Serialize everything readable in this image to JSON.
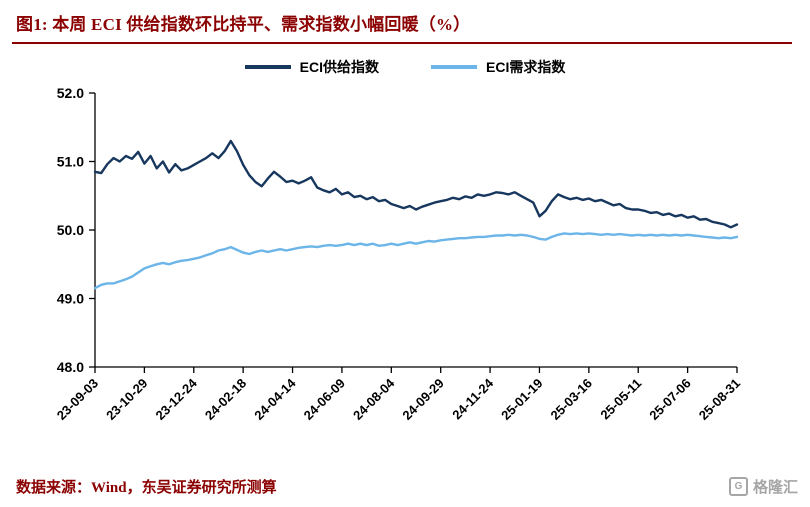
{
  "page": {
    "background": "#ffffff",
    "accent_color": "#8B0000"
  },
  "header": {
    "title": "图1:  本周 ECI 供给指数环比持平、需求指数小幅回暖（%）"
  },
  "footer": {
    "source": "数据来源：Wind，东吴证券研究所测算",
    "logo_text": "格隆汇",
    "logo_letter": "G"
  },
  "chart_data": {
    "type": "line",
    "title": "本周 ECI 供给指数环比持平、需求指数小幅回暖（%）",
    "ylabel": "",
    "xlabel": "",
    "ylim": [
      48.0,
      52.0
    ],
    "y_tick_labels": [
      "48.0",
      "49.0",
      "50.0",
      "51.0",
      "52.0"
    ],
    "x_tick_step": 8,
    "x_tick_labels": [
      "23-09-03",
      "23-10-29",
      "23-12-24",
      "24-02-18",
      "24-04-14",
      "24-06-09",
      "24-08-04",
      "24-09-29",
      "24-11-24",
      "25-01-19",
      "25-03-16",
      "25-05-11",
      "25-07-06",
      "25-08-31"
    ],
    "grid": false,
    "legend_position": "top-center",
    "axis_color": "#000000",
    "series": [
      {
        "name": "ECI供给指数",
        "color": "#17375E",
        "values": [
          50.85,
          50.83,
          50.96,
          51.05,
          51.0,
          51.08,
          51.04,
          51.14,
          50.97,
          51.08,
          50.9,
          51.0,
          50.84,
          50.96,
          50.87,
          50.9,
          50.95,
          51.0,
          51.05,
          51.12,
          51.05,
          51.15,
          51.3,
          51.15,
          50.95,
          50.8,
          50.7,
          50.64,
          50.75,
          50.85,
          50.78,
          50.7,
          50.72,
          50.68,
          50.72,
          50.77,
          50.62,
          50.58,
          50.55,
          50.6,
          50.52,
          50.55,
          50.48,
          50.5,
          50.45,
          50.48,
          50.42,
          50.44,
          50.38,
          50.35,
          50.32,
          50.35,
          50.3,
          50.34,
          50.37,
          50.4,
          50.42,
          50.44,
          50.47,
          50.45,
          50.49,
          50.47,
          50.52,
          50.5,
          50.52,
          50.55,
          50.54,
          50.52,
          50.55,
          50.5,
          50.45,
          50.4,
          50.2,
          50.28,
          50.42,
          50.52,
          50.48,
          50.45,
          50.47,
          50.44,
          50.46,
          50.42,
          50.44,
          50.4,
          50.36,
          50.38,
          50.32,
          50.3,
          50.3,
          50.28,
          50.25,
          50.26,
          50.22,
          50.24,
          50.2,
          50.22,
          50.18,
          50.2,
          50.15,
          50.16,
          50.12,
          50.1,
          50.08,
          50.04,
          50.08
        ]
      },
      {
        "name": "ECI需求指数",
        "color": "#6CB5E8",
        "values": [
          49.15,
          49.2,
          49.22,
          49.22,
          49.25,
          49.28,
          49.32,
          49.38,
          49.44,
          49.47,
          49.5,
          49.52,
          49.5,
          49.53,
          49.55,
          49.56,
          49.58,
          49.6,
          49.63,
          49.66,
          49.7,
          49.72,
          49.75,
          49.71,
          49.67,
          49.65,
          49.68,
          49.7,
          49.68,
          49.7,
          49.72,
          49.7,
          49.72,
          49.74,
          49.75,
          49.76,
          49.75,
          49.77,
          49.78,
          49.77,
          49.78,
          49.8,
          49.78,
          49.8,
          49.78,
          49.8,
          49.77,
          49.78,
          49.8,
          49.78,
          49.8,
          49.82,
          49.8,
          49.82,
          49.84,
          49.83,
          49.85,
          49.86,
          49.87,
          49.88,
          49.88,
          49.89,
          49.9,
          49.9,
          49.91,
          49.92,
          49.92,
          49.93,
          49.92,
          49.93,
          49.92,
          49.9,
          49.87,
          49.86,
          49.9,
          49.93,
          49.95,
          49.94,
          49.95,
          49.94,
          49.95,
          49.94,
          49.93,
          49.94,
          49.93,
          49.94,
          49.93,
          49.92,
          49.93,
          49.92,
          49.93,
          49.92,
          49.93,
          49.92,
          49.93,
          49.92,
          49.93,
          49.92,
          49.91,
          49.9,
          49.89,
          49.88,
          49.89,
          49.88,
          49.9
        ]
      }
    ]
  }
}
